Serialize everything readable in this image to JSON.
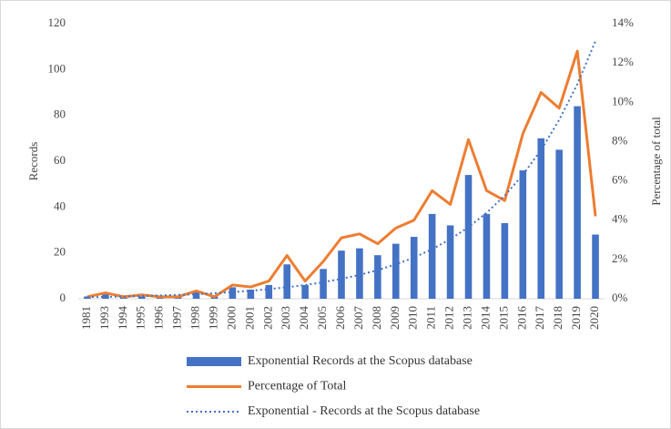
{
  "chart_data": {
    "type": "bar_line",
    "y_label": "Records",
    "y2_label": "Percentage of  total",
    "categories": [
      "1981",
      "1993",
      "1994",
      "1995",
      "1996",
      "1997",
      "1998",
      "1999",
      "2000",
      "2001",
      "2002",
      "2003",
      "2004",
      "2005",
      "2006",
      "2007",
      "2008",
      "2009",
      "2010",
      "2011",
      "2012",
      "2013",
      "2014",
      "2015",
      "2016",
      "2017",
      "2018",
      "2019",
      "2020"
    ],
    "series": [
      {
        "name": "Exponential Records at the Scopus database",
        "kind": "bar",
        "color": "#4472c4",
        "values": [
          1,
          2,
          1,
          1,
          1,
          1,
          3,
          1,
          5,
          4,
          6,
          15,
          6,
          13,
          21,
          22,
          19,
          24,
          27,
          37,
          32,
          54,
          37,
          33,
          56,
          70,
          65,
          84,
          28
        ]
      },
      {
        "name": "Percentage of Total",
        "kind": "line",
        "axis": "y2",
        "color": "#ed7d31",
        "values": [
          0.1,
          0.3,
          0.1,
          0.2,
          0.1,
          0.1,
          0.4,
          0.1,
          0.7,
          0.6,
          0.9,
          2.2,
          0.9,
          1.9,
          3.1,
          3.3,
          2.8,
          3.6,
          4.0,
          5.5,
          4.8,
          8.1,
          5.5,
          5.0,
          8.4,
          10.5,
          9.7,
          12.6,
          4.2
        ]
      },
      {
        "name": "Exponential - Records at the Scopus database",
        "kind": "trend",
        "color": "#4472c4",
        "values": [
          0.7,
          0.8,
          1.0,
          1.2,
          1.4,
          1.7,
          2.0,
          2.4,
          2.9,
          3.5,
          4.2,
          5.0,
          6.0,
          7.2,
          8.7,
          10.4,
          12.5,
          15.0,
          18.0,
          21.6,
          26.0,
          31.2,
          37.5,
          45.0,
          54.1,
          64.9,
          78.0,
          93.6,
          112.4
        ]
      }
    ],
    "ylim": [
      0,
      120
    ],
    "yticks": [
      0,
      20,
      40,
      60,
      80,
      100,
      120
    ],
    "y2lim": [
      0,
      14
    ],
    "y2ticks": [
      {
        "value": 0,
        "label": "0%"
      },
      {
        "value": 2,
        "label": "2%"
      },
      {
        "value": 4,
        "label": "4%"
      },
      {
        "value": 6,
        "label": "6%"
      },
      {
        "value": 8,
        "label": "8%"
      },
      {
        "value": 10,
        "label": "10%"
      },
      {
        "value": 12,
        "label": "12%"
      },
      {
        "value": 14,
        "label": "14%"
      }
    ]
  }
}
